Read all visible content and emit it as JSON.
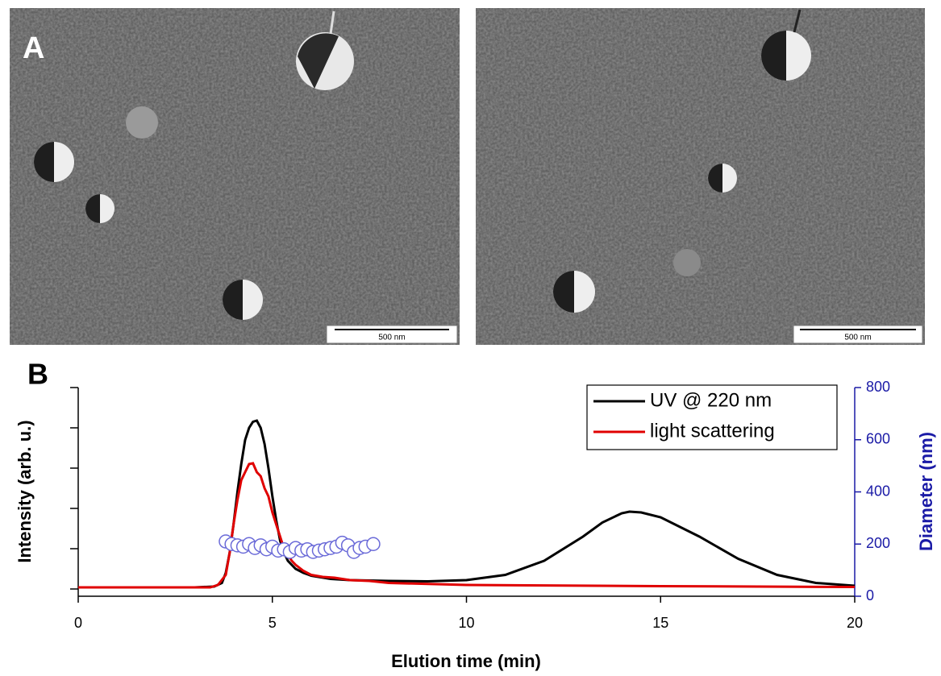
{
  "panels": {
    "a_label": "A",
    "b_label": "B",
    "scale_bar_left": "500 nm",
    "scale_bar_right": "500 nm"
  },
  "chart_data": {
    "type": "line",
    "x_label": "Elution time (min)",
    "y_label": "Intensity (arb. u.)",
    "y2_label": "Diameter (nm)",
    "xlim": [
      0,
      20
    ],
    "xticks": [
      0,
      5,
      10,
      15,
      20
    ],
    "ylim": [
      -0.18,
      5
    ],
    "yticks": [
      0,
      1,
      2,
      3,
      4,
      5
    ],
    "y2lim": [
      0,
      800
    ],
    "y2ticks": [
      0,
      200,
      400,
      600,
      800
    ],
    "y2_color": "#1a1aa6",
    "legend": "upper right",
    "series": [
      {
        "name": "UV @ 220 nm",
        "color": "#000000",
        "x": [
          0,
          3,
          3.5,
          3.7,
          3.8,
          3.9,
          4.0,
          4.1,
          4.2,
          4.3,
          4.4,
          4.5,
          4.6,
          4.7,
          4.8,
          4.9,
          5.0,
          5.1,
          5.2,
          5.3,
          5.4,
          5.6,
          5.8,
          6.0,
          6.5,
          7,
          8,
          9,
          10,
          11,
          12,
          13,
          13.5,
          14,
          14.2,
          14.5,
          15,
          16,
          17,
          18,
          19,
          20
        ],
        "values": [
          0.04,
          0.04,
          0.06,
          0.15,
          0.4,
          0.9,
          1.6,
          2.4,
          3.1,
          3.7,
          4.0,
          4.15,
          4.18,
          4.0,
          3.6,
          3.0,
          2.3,
          1.7,
          1.2,
          0.9,
          0.7,
          0.5,
          0.4,
          0.33,
          0.25,
          0.22,
          0.2,
          0.19,
          0.22,
          0.35,
          0.7,
          1.3,
          1.65,
          1.88,
          1.92,
          1.9,
          1.78,
          1.3,
          0.75,
          0.35,
          0.15,
          0.08
        ]
      },
      {
        "name": "light scattering",
        "color": "#e00000",
        "x": [
          0,
          3.4,
          3.6,
          3.8,
          3.9,
          4.0,
          4.1,
          4.2,
          4.3,
          4.4,
          4.5,
          4.6,
          4.7,
          4.8,
          4.9,
          5.0,
          5.1,
          5.2,
          5.3,
          5.4,
          5.5,
          5.6,
          5.8,
          6.0,
          6.3,
          6.6,
          7,
          7.5,
          8,
          10,
          15,
          20
        ],
        "values": [
          0.04,
          0.04,
          0.1,
          0.35,
          0.9,
          1.6,
          2.2,
          2.7,
          2.9,
          3.1,
          3.12,
          2.9,
          2.8,
          2.5,
          2.3,
          1.9,
          1.6,
          1.3,
          1.0,
          0.85,
          0.7,
          0.6,
          0.45,
          0.35,
          0.3,
          0.28,
          0.22,
          0.2,
          0.15,
          0.1,
          0.07,
          0.05
        ]
      },
      {
        "type": "scatter",
        "axis": "y2",
        "color": "#6a6ad8",
        "x": [
          3.8,
          3.95,
          4.1,
          4.25,
          4.4,
          4.55,
          4.7,
          4.85,
          5.0,
          5.15,
          5.3,
          5.45,
          5.6,
          5.75,
          5.9,
          6.05,
          6.2,
          6.35,
          6.5,
          6.65,
          6.8,
          6.95,
          7.1,
          7.25,
          7.4,
          7.6
        ],
        "values": [
          210,
          200,
          195,
          190,
          200,
          185,
          195,
          180,
          190,
          175,
          180,
          170,
          185,
          175,
          180,
          170,
          175,
          180,
          185,
          190,
          205,
          195,
          170,
          185,
          190,
          200
        ]
      }
    ]
  }
}
